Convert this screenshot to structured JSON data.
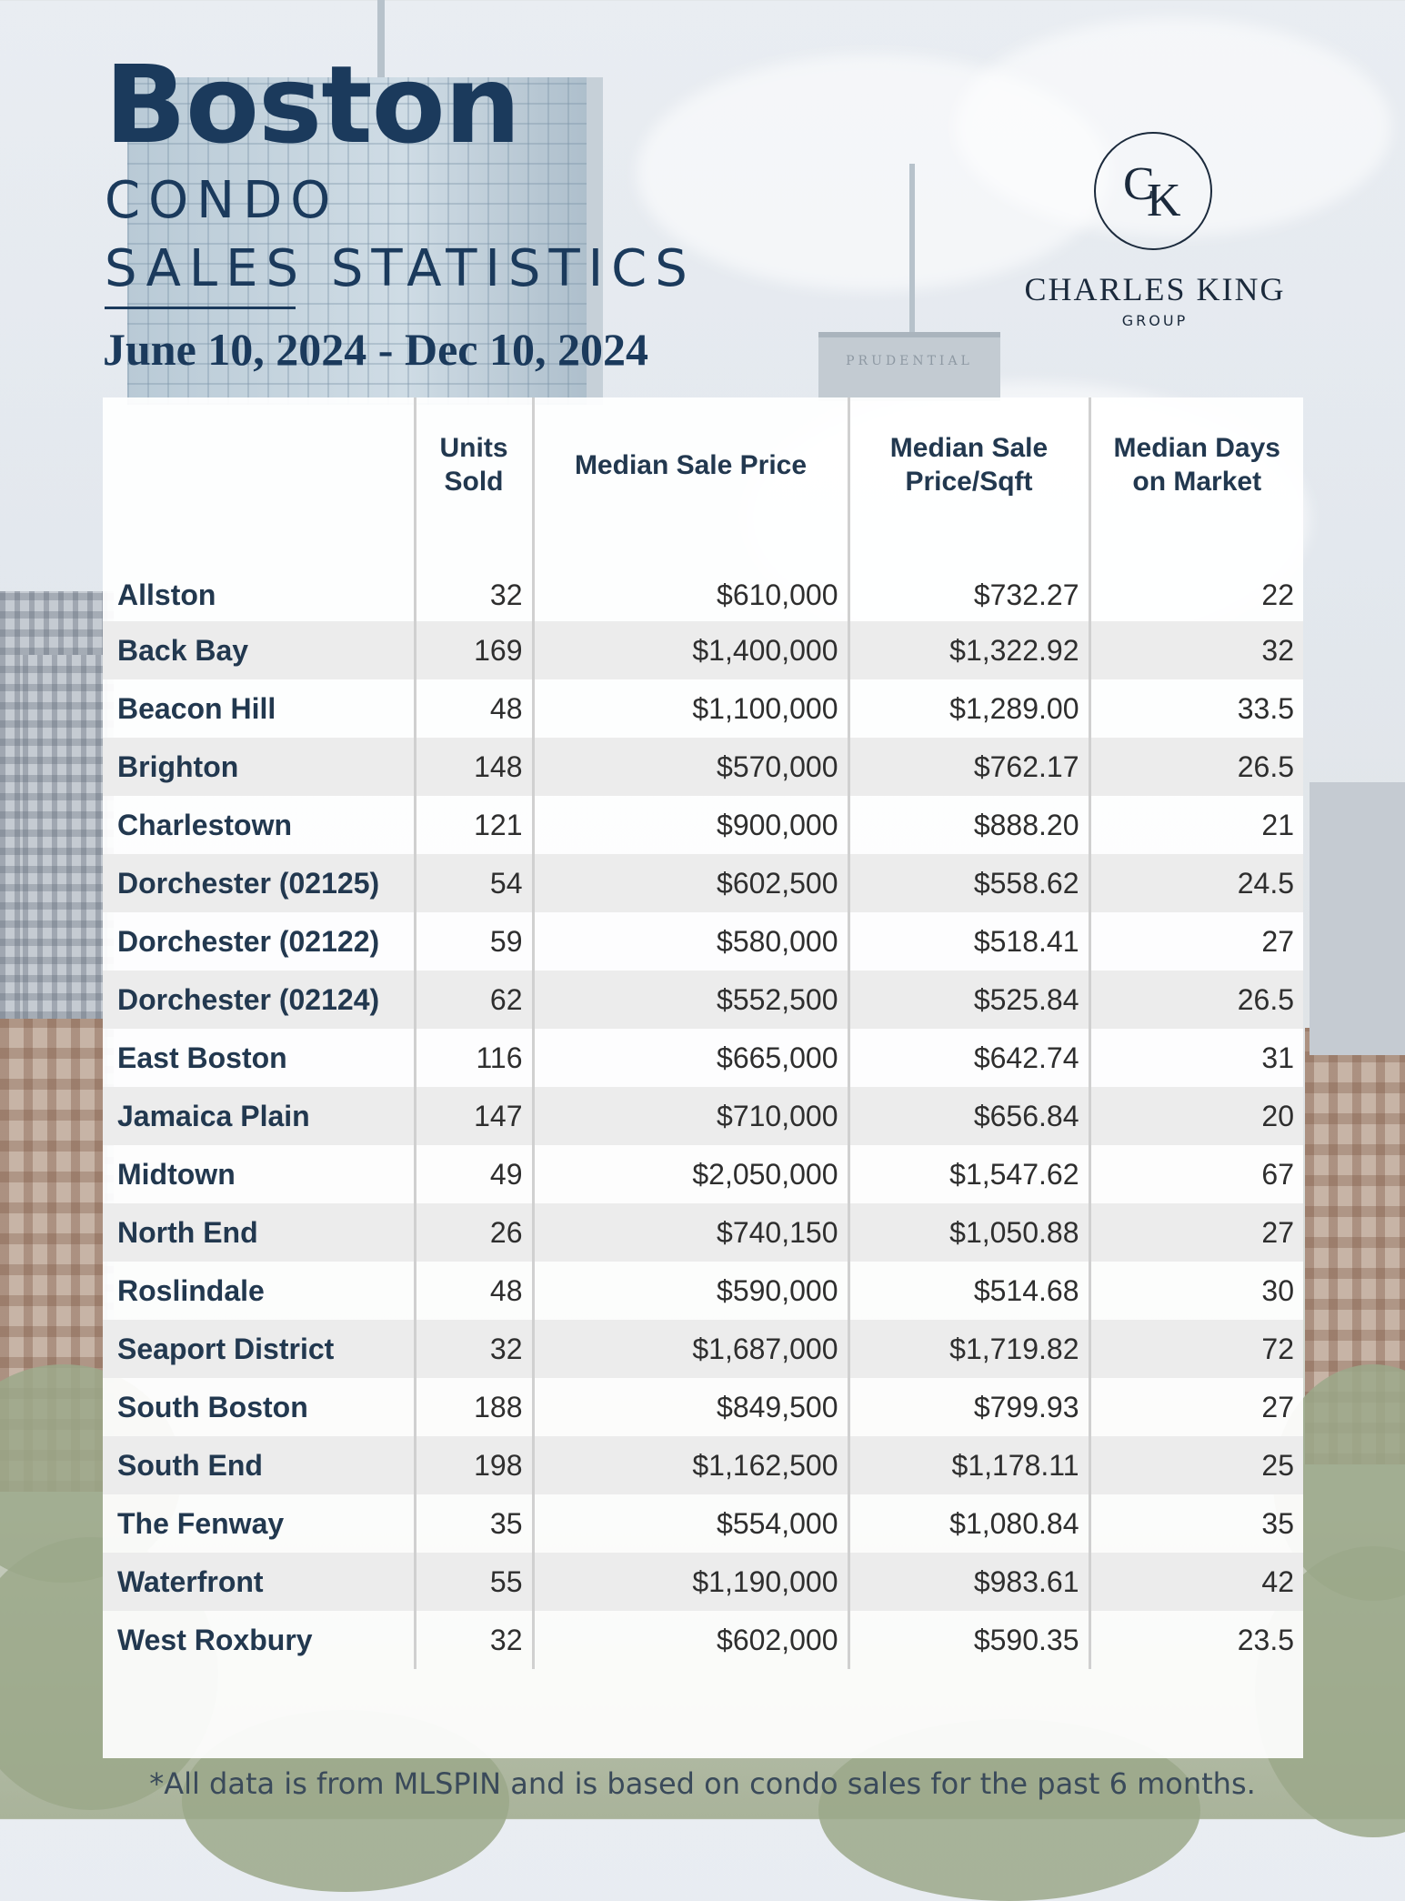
{
  "header": {
    "city": "Boston",
    "subtitle_line1": "CONDO",
    "subtitle_line2": "SALES STATISTICS",
    "date_range": "June 10, 2024 - Dec 10, 2024"
  },
  "logo": {
    "monogram_c": "C",
    "monogram_k": "K",
    "name": "CHARLES KING",
    "group": "GROUP"
  },
  "background": {
    "building_sign": "PRUDENTIAL"
  },
  "table": {
    "columns": [
      "",
      "Units Sold",
      "Median Sale Price",
      "Median Sale Price/Sqft",
      "Median Days on Market"
    ],
    "rows": [
      {
        "neighborhood": "Allston",
        "units_sold": "32",
        "median_sale_price": "$610,000",
        "median_price_sqft": "$732.27",
        "median_days": "22"
      },
      {
        "neighborhood": "Back Bay",
        "units_sold": "169",
        "median_sale_price": "$1,400,000",
        "median_price_sqft": "$1,322.92",
        "median_days": "32"
      },
      {
        "neighborhood": "Beacon Hill",
        "units_sold": "48",
        "median_sale_price": "$1,100,000",
        "median_price_sqft": "$1,289.00",
        "median_days": "33.5"
      },
      {
        "neighborhood": "Brighton",
        "units_sold": "148",
        "median_sale_price": "$570,000",
        "median_price_sqft": "$762.17",
        "median_days": "26.5"
      },
      {
        "neighborhood": "Charlestown",
        "units_sold": "121",
        "median_sale_price": "$900,000",
        "median_price_sqft": "$888.20",
        "median_days": "21"
      },
      {
        "neighborhood": "Dorchester (02125)",
        "units_sold": "54",
        "median_sale_price": "$602,500",
        "median_price_sqft": "$558.62",
        "median_days": "24.5"
      },
      {
        "neighborhood": "Dorchester (02122)",
        "units_sold": "59",
        "median_sale_price": "$580,000",
        "median_price_sqft": "$518.41",
        "median_days": "27"
      },
      {
        "neighborhood": "Dorchester (02124)",
        "units_sold": "62",
        "median_sale_price": "$552,500",
        "median_price_sqft": "$525.84",
        "median_days": "26.5"
      },
      {
        "neighborhood": "East Boston",
        "units_sold": "116",
        "median_sale_price": "$665,000",
        "median_price_sqft": "$642.74",
        "median_days": "31"
      },
      {
        "neighborhood": "Jamaica Plain",
        "units_sold": "147",
        "median_sale_price": "$710,000",
        "median_price_sqft": "$656.84",
        "median_days": "20"
      },
      {
        "neighborhood": "Midtown",
        "units_sold": "49",
        "median_sale_price": "$2,050,000",
        "median_price_sqft": "$1,547.62",
        "median_days": "67"
      },
      {
        "neighborhood": "North End",
        "units_sold": "26",
        "median_sale_price": "$740,150",
        "median_price_sqft": "$1,050.88",
        "median_days": "27"
      },
      {
        "neighborhood": "Roslindale",
        "units_sold": "48",
        "median_sale_price": "$590,000",
        "median_price_sqft": "$514.68",
        "median_days": "30"
      },
      {
        "neighborhood": "Seaport District",
        "units_sold": "32",
        "median_sale_price": "$1,687,000",
        "median_price_sqft": "$1,719.82",
        "median_days": "72"
      },
      {
        "neighborhood": "South Boston",
        "units_sold": "188",
        "median_sale_price": "$849,500",
        "median_price_sqft": "$799.93",
        "median_days": "27"
      },
      {
        "neighborhood": "South End",
        "units_sold": "198",
        "median_sale_price": "$1,162,500",
        "median_price_sqft": "$1,178.11",
        "median_days": "25"
      },
      {
        "neighborhood": "The Fenway",
        "units_sold": "35",
        "median_sale_price": "$554,000",
        "median_price_sqft": "$1,080.84",
        "median_days": "35"
      },
      {
        "neighborhood": "Waterfront",
        "units_sold": "55",
        "median_sale_price": "$1,190,000",
        "median_price_sqft": "$983.61",
        "median_days": "42"
      },
      {
        "neighborhood": "West Roxbury",
        "units_sold": "32",
        "median_sale_price": "$602,000",
        "median_price_sqft": "$590.35",
        "median_days": "23.5"
      }
    ]
  },
  "footnote": "*All data is from MLSPIN and is based on condo sales for the past 6 months.",
  "colors": {
    "navy": "#1b3a5c",
    "row_stripe": "#ececec"
  }
}
